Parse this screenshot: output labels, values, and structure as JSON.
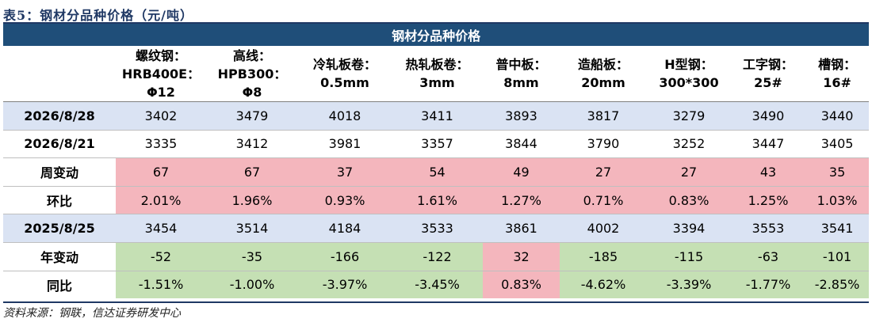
{
  "caption": "表5：钢材分品种价格（元/吨）",
  "table": {
    "title": "钢材分品种价格",
    "columns": [
      "螺纹钢：\nHRB400E：\nΦ12",
      "高线：\nHPB300：\nΦ8",
      "冷轧板卷：\n0.5mm",
      "热轧板卷：\n3mm",
      "普中板：\n8mm",
      "造船板：\n20mm",
      "H型钢：\n300*300",
      "工字钢：\n25#",
      "槽钢：\n16#"
    ],
    "rows": [
      {
        "label": "2026/8/28",
        "style": "blue",
        "values": [
          "3402",
          "3479",
          "4018",
          "3411",
          "3893",
          "3817",
          "3279",
          "3490",
          "3440"
        ]
      },
      {
        "label": "2026/8/21",
        "style": "white",
        "values": [
          "3335",
          "3412",
          "3981",
          "3357",
          "3844",
          "3790",
          "3252",
          "3447",
          "3405"
        ]
      },
      {
        "label": "周变动",
        "style": "change",
        "values": [
          "67",
          "67",
          "37",
          "54",
          "49",
          "27",
          "27",
          "43",
          "35"
        ],
        "signs": [
          "up",
          "up",
          "up",
          "up",
          "up",
          "up",
          "up",
          "up",
          "up"
        ]
      },
      {
        "label": "环比",
        "style": "change",
        "values": [
          "2.01%",
          "1.96%",
          "0.93%",
          "1.61%",
          "1.27%",
          "0.71%",
          "0.83%",
          "1.25%",
          "1.03%"
        ],
        "signs": [
          "up",
          "up",
          "up",
          "up",
          "up",
          "up",
          "up",
          "up",
          "up"
        ]
      },
      {
        "label": "2025/8/25",
        "style": "blue",
        "values": [
          "3454",
          "3514",
          "4184",
          "3533",
          "3861",
          "4002",
          "3394",
          "3553",
          "3541"
        ]
      },
      {
        "label": "年变动",
        "style": "change",
        "values": [
          "-52",
          "-35",
          "-166",
          "-122",
          "32",
          "-185",
          "-115",
          "-63",
          "-101"
        ],
        "signs": [
          "down",
          "down",
          "down",
          "down",
          "up",
          "down",
          "down",
          "down",
          "down"
        ]
      },
      {
        "label": "同比",
        "style": "change",
        "values": [
          "-1.51%",
          "-1.00%",
          "-3.97%",
          "-3.45%",
          "0.83%",
          "-4.62%",
          "-3.39%",
          "-1.77%",
          "-2.85%"
        ],
        "signs": [
          "down",
          "down",
          "down",
          "down",
          "up",
          "down",
          "down",
          "down",
          "down"
        ]
      }
    ]
  },
  "colors": {
    "up": "#f4b6bd",
    "down": "#c5e0b4",
    "header": "#1f4e79",
    "blue_row": "#dae3f3"
  },
  "source": "资料来源：钢联，信达证券研发中心"
}
